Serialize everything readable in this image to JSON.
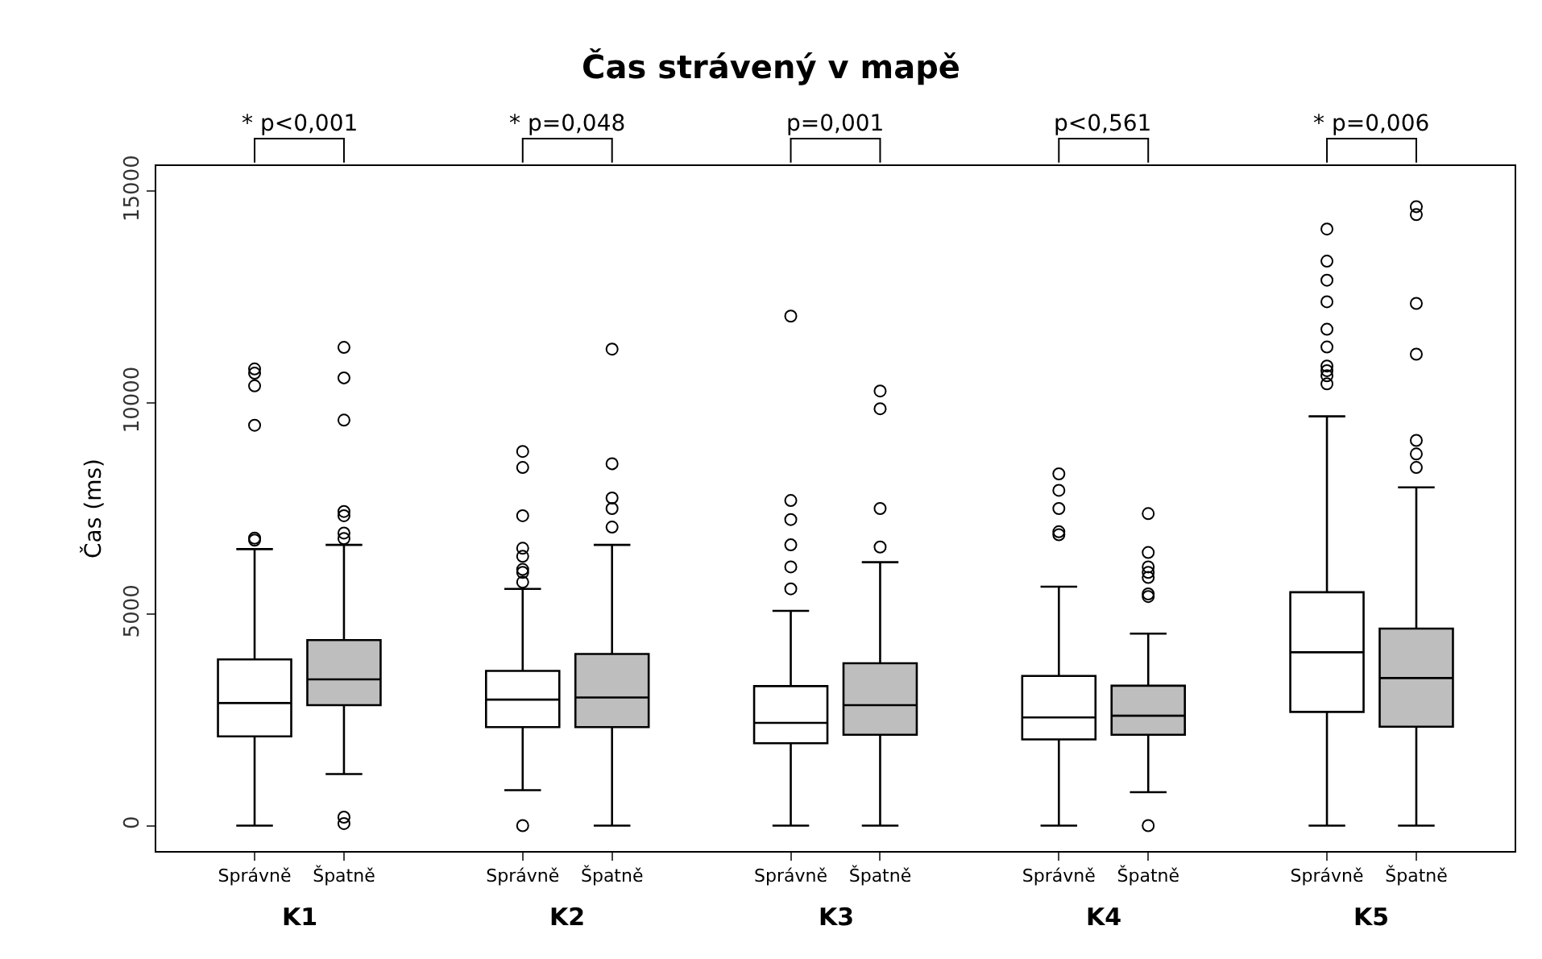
{
  "chart_data": {
    "type": "box",
    "title": "Čas strávený v mapě",
    "ylabel": "Čas (ms)",
    "categories": [
      "Správně",
      "Špatně",
      "Správně",
      "Špatně",
      "Správně",
      "Špatně",
      "Správně",
      "Špatně",
      "Správně",
      "Špatně"
    ],
    "colors": [
      "#ffffff",
      "#bebebe",
      "#ffffff",
      "#bebebe",
      "#ffffff",
      "#bebebe",
      "#ffffff",
      "#bebebe",
      "#ffffff",
      "#bebebe"
    ],
    "boxes": [
      {
        "low": 0,
        "q1": 2110,
        "median": 2900,
        "q3": 3930,
        "high": 6540,
        "outliers": [
          6750,
          6800,
          9470,
          10400,
          10700,
          10800
        ]
      },
      {
        "low": 1220,
        "q1": 2850,
        "median": 3460,
        "q3": 4390,
        "high": 6640,
        "outliers": [
          50,
          200,
          6790,
          6920,
          7330,
          7430,
          9590,
          10590,
          11310
        ]
      },
      {
        "low": 840,
        "q1": 2330,
        "median": 2980,
        "q3": 3660,
        "high": 5600,
        "outliers": [
          0,
          5760,
          5990,
          6060,
          6370,
          6560,
          7330,
          8470,
          8850
        ]
      },
      {
        "low": 0,
        "q1": 2330,
        "median": 3030,
        "q3": 4060,
        "high": 6640,
        "outliers": [
          7060,
          7500,
          7750,
          8560,
          11270
        ]
      },
      {
        "low": 0,
        "q1": 1950,
        "median": 2430,
        "q3": 3300,
        "high": 5080,
        "outliers": [
          5600,
          6120,
          6640,
          7240,
          7690,
          12050
        ]
      },
      {
        "low": 0,
        "q1": 2150,
        "median": 2850,
        "q3": 3840,
        "high": 6230,
        "outliers": [
          6590,
          7500,
          9860,
          10280
        ]
      },
      {
        "low": 0,
        "q1": 2040,
        "median": 2560,
        "q3": 3540,
        "high": 5650,
        "outliers": [
          6880,
          6950,
          7500,
          7930,
          8320
        ]
      },
      {
        "low": 790,
        "q1": 2150,
        "median": 2600,
        "q3": 3310,
        "high": 4540,
        "outliers": [
          0,
          5420,
          5480,
          5870,
          5990,
          6120,
          6460,
          7380
        ]
      },
      {
        "low": 0,
        "q1": 2690,
        "median": 4100,
        "q3": 5520,
        "high": 9680,
        "outliers": [
          10450,
          10640,
          10760,
          10870,
          11320,
          11740,
          12390,
          12900,
          13350,
          14110
        ]
      },
      {
        "low": 0,
        "q1": 2340,
        "median": 3490,
        "q3": 4660,
        "high": 8000,
        "outliers": [
          8470,
          8790,
          9110,
          11150,
          12350,
          14450,
          14640
        ]
      }
    ],
    "ylim": [
      -600,
      15600
    ],
    "yticks": [
      0,
      5000,
      10000,
      15000
    ],
    "grid": false,
    "marker": "circle",
    "annotations": [
      "* p<0,001",
      "* p=0,048",
      "p=0,001",
      "p<0,561",
      "* p=0,006",
      "K1",
      "K2",
      "K3",
      "K4",
      "K5"
    ]
  }
}
